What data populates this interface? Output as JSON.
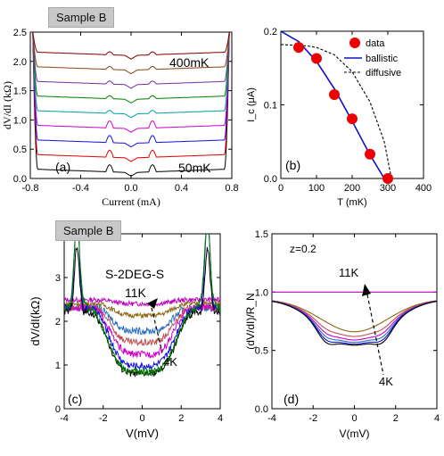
{
  "chart_data": [
    {
      "panel": "(a)",
      "type": "line",
      "tag": "Sample B",
      "xlabel": "Current (mA)",
      "ylabel": "dV/dI (kΩ)",
      "xlim": [
        -0.8,
        0.8
      ],
      "ylim": [
        0.0,
        2.5
      ],
      "xticks": [
        "-0.8",
        "-0.4",
        "0.0",
        "0.4",
        "0.8"
      ],
      "yticks": [
        "0.0",
        "0.5",
        "1.0",
        "1.5",
        "2.0",
        "2.5"
      ],
      "annotations": [
        "400mK",
        "50mK"
      ],
      "series_colors": [
        "#000000",
        "#e00000",
        "#1010e0",
        "#d000d0",
        "#00a0a0",
        "#008000",
        "#7030a0",
        "#8b4513",
        "#800000"
      ],
      "series_offsets": [
        0.0,
        0.25,
        0.5,
        0.75,
        1.0,
        1.25,
        1.5,
        1.75,
        2.0
      ],
      "plateau_base": 0.1,
      "step_edge_ma": 0.78,
      "step_top": 2.5
    },
    {
      "panel": "(b)",
      "type": "scatter",
      "xlabel": "T (mK)",
      "ylabel": "I_c (μA)",
      "xlim": [
        0,
        400
      ],
      "ylim": [
        0.0,
        0.2
      ],
      "xticks": [
        "0",
        "100",
        "200",
        "300",
        "400"
      ],
      "yticks": [
        "0.0",
        "0.1",
        "0.2"
      ],
      "legend": {
        "entries": [
          "data",
          "ballistic",
          "diffusive"
        ],
        "position": "top-right"
      },
      "points": {
        "x": [
          50,
          100,
          150,
          200,
          250,
          300
        ],
        "y": [
          0.178,
          0.163,
          0.114,
          0.081,
          0.033,
          0.0
        ],
        "color": "#ee0000"
      },
      "ballistic": {
        "x": [
          0,
          50,
          100,
          150,
          200,
          250,
          290
        ],
        "y": [
          0.2,
          0.186,
          0.159,
          0.122,
          0.078,
          0.032,
          0.0
        ],
        "color": "#1010cc"
      },
      "diffusive": {
        "x": [
          0,
          75,
          100,
          150,
          200,
          250,
          290,
          310
        ],
        "y": [
          0.182,
          0.18,
          0.178,
          0.168,
          0.145,
          0.104,
          0.05,
          0.0
        ],
        "color": "#000000"
      }
    },
    {
      "panel": "(c)",
      "type": "line",
      "tag": "Sample B",
      "xlabel": "V(mV)",
      "ylabel": "dV/dI(kΩ)",
      "xlim": [
        -4,
        4
      ],
      "ylim": [
        0,
        4.5
      ],
      "xticks": [
        "-4",
        "-2",
        "0",
        "2",
        "4"
      ],
      "yticks": [
        "0",
        "1",
        "2",
        "3",
        "4"
      ],
      "annotations": [
        "S-2DEG-S",
        "11K",
        "4K"
      ],
      "series_colors": [
        "#c000c0",
        "#8b6914",
        "#3070c0",
        "#c05050",
        "#d000d0",
        "#1010e0",
        "#000000",
        "#008000"
      ],
      "series_min": [
        2.7,
        2.4,
        2.0,
        1.7,
        1.4,
        1.1,
        0.9,
        0.95
      ],
      "series_base": [
        2.8,
        2.7,
        2.6,
        2.6,
        2.6,
        2.6,
        2.5,
        2.6
      ]
    },
    {
      "panel": "(d)",
      "type": "line",
      "xlabel": "V(mV)",
      "ylabel": "(dV/dI)/R_N",
      "xlim": [
        -4,
        4
      ],
      "ylim": [
        0.0,
        1.5
      ],
      "xticks": [
        "-4",
        "-2",
        "0",
        "2",
        "4"
      ],
      "yticks": [
        "0.0",
        "0.5",
        "1.0",
        "1.5"
      ],
      "annotations": [
        "z=0.2",
        "11K",
        "4K"
      ],
      "series_colors": [
        "#c000c0",
        "#8b6914",
        "#c05050",
        "#d000d0",
        "#3070c0",
        "#1010e0",
        "#000000"
      ],
      "series_min": [
        1.0,
        0.66,
        0.62,
        0.59,
        0.57,
        0.555,
        0.545
      ]
    }
  ]
}
